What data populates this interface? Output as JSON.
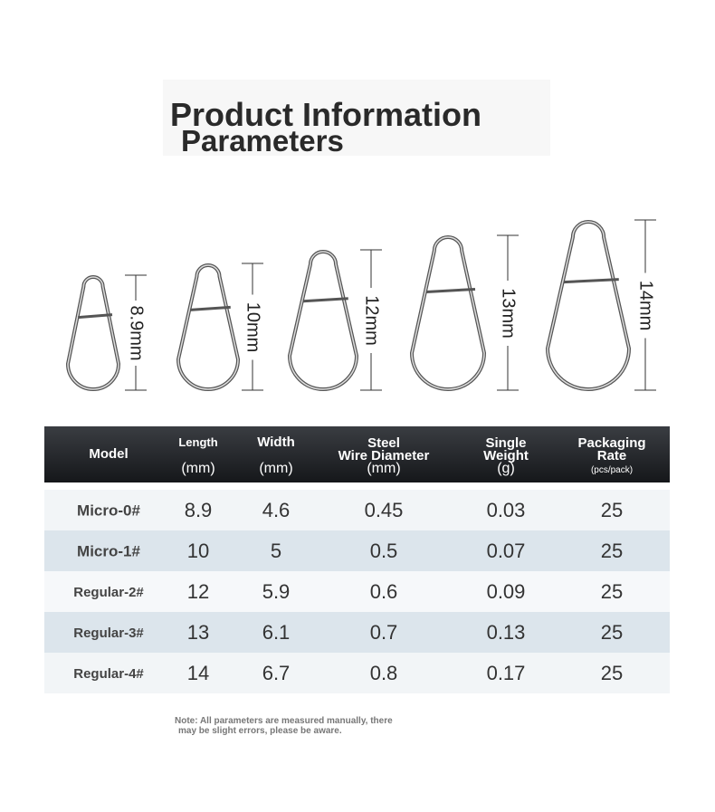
{
  "header": {
    "title": [
      "Product Information",
      "Parameters"
    ]
  },
  "sizes": [
    "8.9mm",
    "10mm",
    "12mm",
    "13mm",
    "14mm"
  ],
  "table": {
    "columns": [
      {
        "name": "Model"
      },
      {
        "name": "Length",
        "unit": "(mm)"
      },
      {
        "name": "Width",
        "unit": "(mm)"
      },
      {
        "name": "Steel Wire Diameter",
        "unit": "(mm)"
      },
      {
        "name": "Single Weight",
        "unit": "(g)"
      },
      {
        "name": "Packaging Rate",
        "unit": "(pcs/pack)"
      }
    ],
    "rows": [
      [
        "Micro-0#",
        "8.9",
        "4.6",
        "0.45",
        "0.03",
        "25"
      ],
      [
        "Micro-1#",
        "10",
        "5",
        "0.5",
        "0.07",
        "25"
      ],
      [
        "Regular-2#",
        "12",
        "5.9",
        "0.6",
        "0.09",
        "25"
      ],
      [
        "Regular-3#",
        "13",
        "6.1",
        "0.7",
        "0.13",
        "25"
      ],
      [
        "Regular-4#",
        "14",
        "6.7",
        "0.8",
        "0.17",
        "25"
      ]
    ]
  },
  "note": [
    "Note: All parameters are measured manually, there",
    "may be slight errors, please be aware."
  ]
}
